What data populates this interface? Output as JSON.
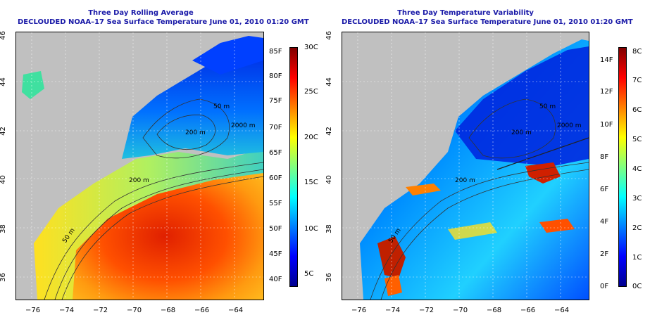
{
  "left_panel": {
    "title": "Three Day Rolling Average",
    "subtitle": "DECLOUDED NOAA–17 Sea Surface Temperature June 01, 2010 01:20 GMT",
    "colorbar_f": [
      "85F",
      "80F",
      "75F",
      "70F",
      "65F",
      "60F",
      "55F",
      "50F",
      "45F",
      "40F"
    ],
    "colorbar_c": [
      "30C",
      "25C",
      "20C",
      "15C",
      "10C",
      "5C"
    ],
    "contour_labels": [
      "50 m",
      "200 m",
      "200 m",
      "50 m",
      "2000 m"
    ],
    "colors": [
      "#00008f",
      "#0000ff",
      "#0080ff",
      "#00ffff",
      "#80ff80",
      "#ffff00",
      "#ff8000",
      "#ff0000",
      "#800000"
    ]
  },
  "right_panel": {
    "title": "Three Day Temperature Variability",
    "subtitle": "DECLOUDED NOAA–17 Sea Surface Temperature June 01, 2010 01:20 GMT",
    "colorbar_f": [
      "14F",
      "12F",
      "10F",
      "8F",
      "6F",
      "4F",
      "2F",
      "0F"
    ],
    "colorbar_c": [
      "8C",
      "7C",
      "6C",
      "5C",
      "4C",
      "3C",
      "2C",
      "1C",
      "0C"
    ],
    "contour_labels": [
      "50 m",
      "200 m",
      "200 m",
      "50 m",
      "2000 m"
    ]
  },
  "axes": {
    "x_ticks": [
      "−76",
      "−74",
      "−72",
      "−70",
      "−68",
      "−66",
      "−64"
    ],
    "y_ticks": [
      "46",
      "44",
      "42",
      "40",
      "38",
      "36"
    ]
  },
  "land_color": "#c0c0c0"
}
